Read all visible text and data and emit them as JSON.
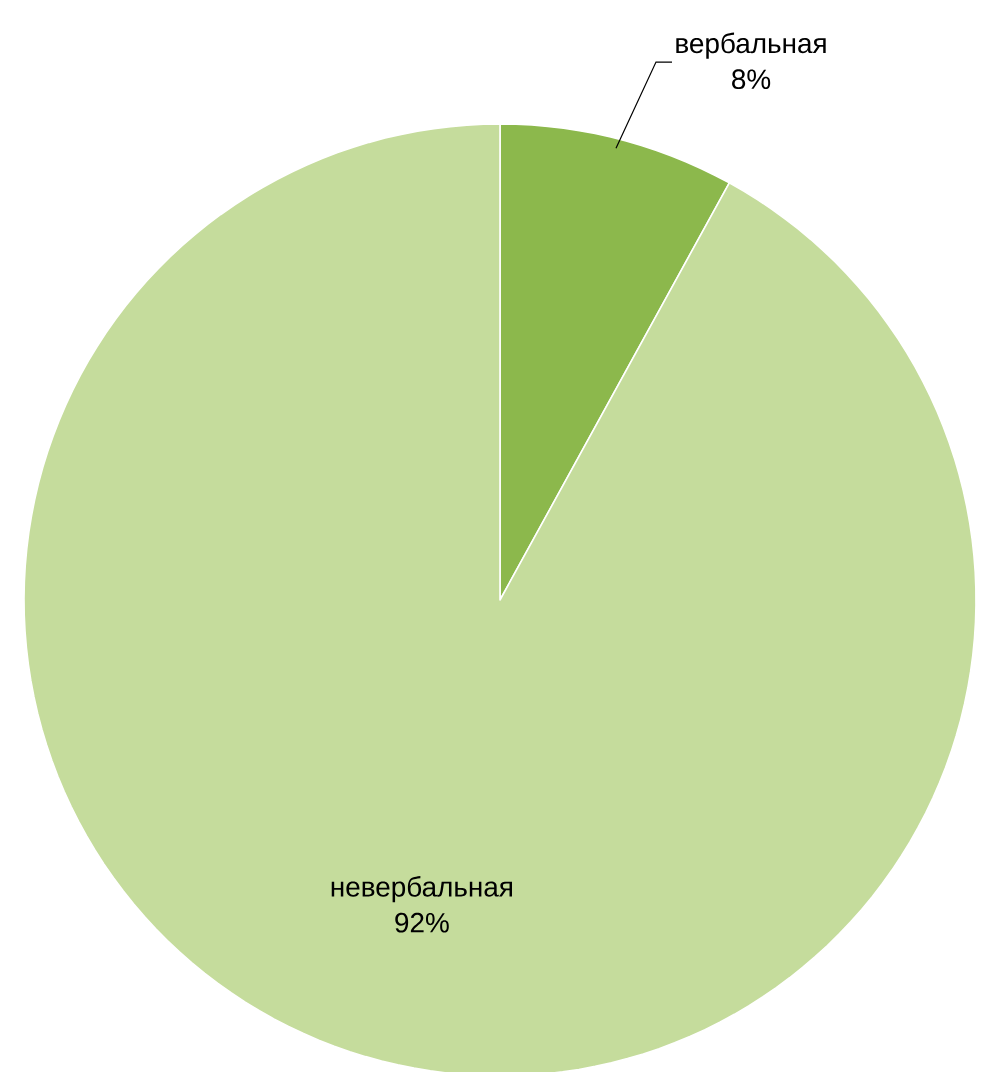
{
  "chart_data": {
    "type": "pie",
    "categories": [
      "вербальная",
      "невербальная"
    ],
    "values": [
      8,
      92
    ],
    "colors": [
      "#8cb84c",
      "#c5dc9c"
    ],
    "value_labels": [
      "8%",
      "92%"
    ]
  }
}
